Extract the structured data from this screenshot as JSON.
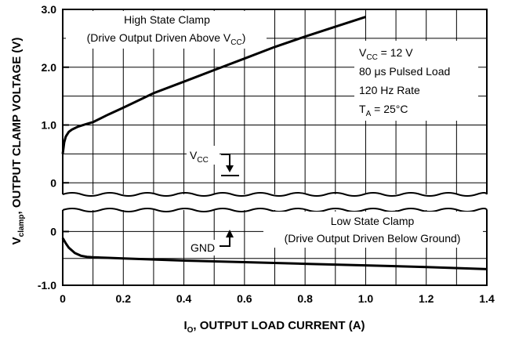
{
  "chart_data": {
    "type": "line",
    "xlabel_main": "I",
    "xlabel_sub": "O",
    "xlabel_rest": ", OUTPUT LOAD CURRENT (A)",
    "ylabel_main": "V",
    "ylabel_sub": "clamp",
    "ylabel_rest": ", OUTPUT CLAMP VOLTAGE (V)",
    "xlim": [
      0,
      1.4
    ],
    "x_ticks": [
      "0",
      "0.2",
      "0.4",
      "0.6",
      "0.8",
      "1.0",
      "1.2",
      "1.4"
    ],
    "x_tick_values": [
      0,
      0.2,
      0.4,
      0.6,
      0.8,
      1.0,
      1.2,
      1.4
    ],
    "grid": true,
    "panels": [
      {
        "name": "high",
        "ylim": [
          -0.2,
          3.0
        ],
        "y_ticks": [
          "3.0",
          "2.0",
          "1.0",
          "0"
        ],
        "y_tick_values": [
          3.0,
          2.0,
          1.0,
          0
        ],
        "series": [
          {
            "x": [
              0,
              0.005,
              0.01,
              0.02,
              0.03,
              0.05,
              0.08,
              0.1,
              0.15,
              0.2,
              0.3,
              0.4,
              0.5,
              0.6,
              0.7,
              0.8,
              0.9,
              1.0
            ],
            "y": [
              0.5,
              0.7,
              0.8,
              0.88,
              0.92,
              0.97,
              1.02,
              1.05,
              1.18,
              1.3,
              1.55,
              1.75,
              1.95,
              2.15,
              2.35,
              2.53,
              2.7,
              2.87
            ]
          }
        ],
        "annotations": {
          "title_line1": "High State Clamp",
          "title_line2": "(Drive Output Driven Above V",
          "title_line2_sub": "CC",
          "title_line2_end": ")",
          "marker_label": "V",
          "marker_sub": "CC"
        }
      },
      {
        "name": "low",
        "ylim": [
          -1.0,
          0.4
        ],
        "y_ticks": [
          "0",
          "-1.0"
        ],
        "y_tick_values": [
          0,
          -1.0
        ],
        "series": [
          {
            "x": [
              0,
              0.01,
              0.02,
              0.04,
              0.06,
              0.08,
              0.1,
              0.15,
              0.2,
              0.4,
              0.6,
              0.8,
              1.0,
              1.2,
              1.4
            ],
            "y": [
              -0.12,
              -0.22,
              -0.3,
              -0.4,
              -0.45,
              -0.47,
              -0.48,
              -0.49,
              -0.5,
              -0.54,
              -0.57,
              -0.6,
              -0.63,
              -0.66,
              -0.7
            ]
          }
        ],
        "annotations": {
          "title_line1": "Low State Clamp",
          "title_line2": "(Drive Output Driven Below Ground)",
          "marker_label": "GND"
        }
      }
    ],
    "conditions": {
      "line1_main": "V",
      "line1_sub": "CC",
      "line1_end": " = 12 V",
      "line2_pre": "80 ",
      "line2_mu": "μ",
      "line2_end": "s Pulsed Load",
      "line3": "120 Hz Rate",
      "line4_main": "T",
      "line4_sub": "A",
      "line4_end": " = 25°C"
    }
  }
}
